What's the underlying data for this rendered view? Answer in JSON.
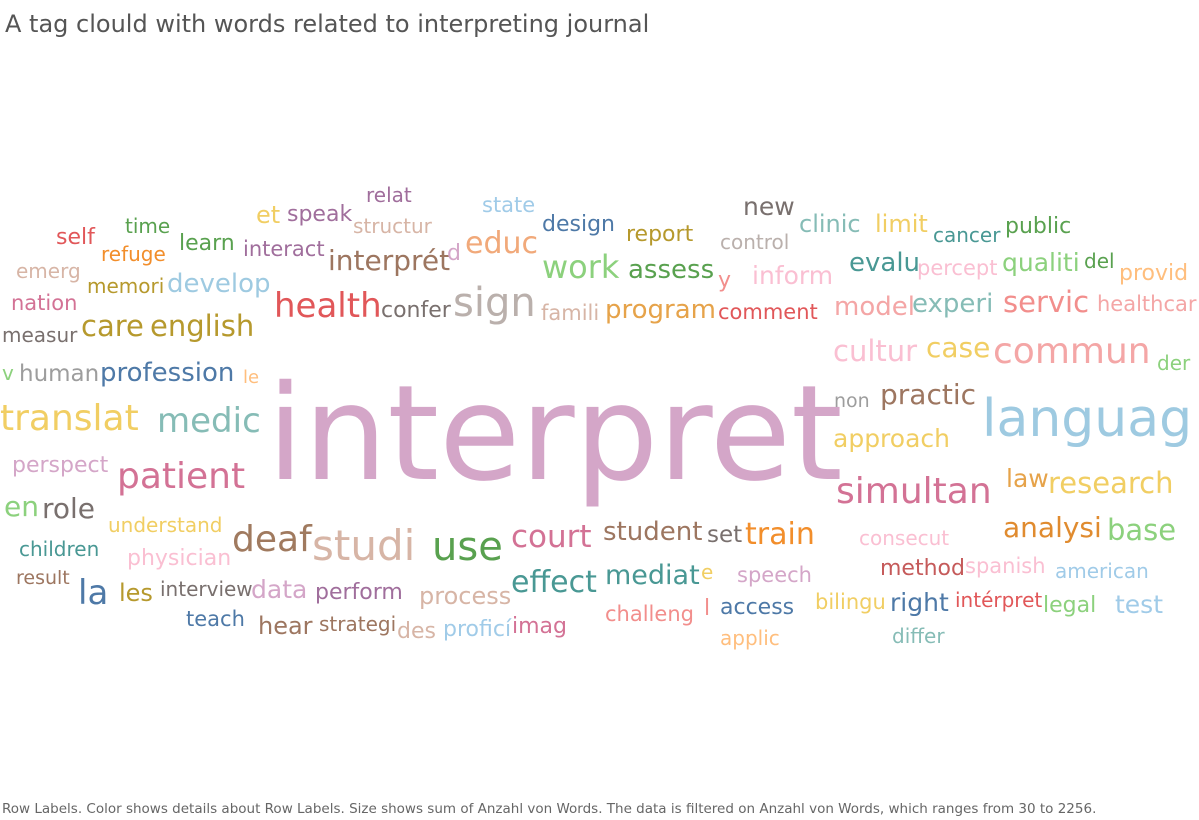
{
  "title": "A tag clould with words related to interpreting journal",
  "caption": "Row Labels.  Color shows details about Row Labels.  Size shows sum of Anzahl von Words. The data is filtered on Anzahl von Words, which ranges from 30 to 2256.",
  "chart_data": {
    "type": "word_cloud",
    "title": "A tag clould with words related to interpreting journal",
    "measure": "Anzahl von Words",
    "filter_range": [
      30,
      2256
    ],
    "words": [
      {
        "text": "interpret",
        "value": 2256,
        "color": "#d4a6c8"
      },
      {
        "text": "languag",
        "value": 620,
        "color": "#9ecae1"
      },
      {
        "text": "studi",
        "value": 330,
        "color": "#d7b5a6"
      },
      {
        "text": "patient",
        "value": 320,
        "color": "#d37295"
      },
      {
        "text": "translat",
        "value": 310,
        "color": "#f1ce63"
      },
      {
        "text": "commun",
        "value": 300,
        "color": "#f4a6a6"
      },
      {
        "text": "simultan",
        "value": 290,
        "color": "#d37295"
      },
      {
        "text": "use",
        "value": 290,
        "color": "#59a14f"
      },
      {
        "text": "sign",
        "value": 280,
        "color": "#bab0ac"
      },
      {
        "text": "medic",
        "value": 270,
        "color": "#86bcb6"
      },
      {
        "text": "health",
        "value": 260,
        "color": "#e15759"
      },
      {
        "text": "deaf",
        "value": 250,
        "color": "#a07a5f"
      },
      {
        "text": "english",
        "value": 200,
        "color": "#b6992d"
      },
      {
        "text": "work",
        "value": 200,
        "color": "#8cd17d"
      },
      {
        "text": "educ",
        "value": 190,
        "color": "#f1a97a"
      },
      {
        "text": "court",
        "value": 185,
        "color": "#d37295"
      },
      {
        "text": "effect",
        "value": 180,
        "color": "#499894"
      },
      {
        "text": "research",
        "value": 175,
        "color": "#f1ce63"
      },
      {
        "text": "train",
        "value": 175,
        "color": "#f28e2b"
      },
      {
        "text": "cultur",
        "value": 170,
        "color": "#fabfd2"
      },
      {
        "text": "care",
        "value": 170,
        "color": "#b6992d"
      },
      {
        "text": "base",
        "value": 165,
        "color": "#8cd17d"
      },
      {
        "text": "servic",
        "value": 165,
        "color": "#f28e8c"
      },
      {
        "text": "role",
        "value": 160,
        "color": "#79706e"
      },
      {
        "text": "case",
        "value": 160,
        "color": "#f1ce63"
      },
      {
        "text": "develop",
        "value": 155,
        "color": "#9ecae1"
      },
      {
        "text": "practic",
        "value": 155,
        "color": "#9d7660"
      },
      {
        "text": "mediat",
        "value": 155,
        "color": "#499894"
      },
      {
        "text": "student",
        "value": 150,
        "color": "#9d7660"
      },
      {
        "text": "analysi",
        "value": 150,
        "color": "#e08b2f"
      },
      {
        "text": "la",
        "value": 150,
        "color": "#4e79a7"
      },
      {
        "text": "program",
        "value": 145,
        "color": "#e6a34a"
      },
      {
        "text": "profession",
        "value": 145,
        "color": "#4e79a7"
      },
      {
        "text": "interprét",
        "value": 145,
        "color": "#9d7660"
      },
      {
        "text": "assess",
        "value": 140,
        "color": "#59a14f"
      },
      {
        "text": "experi",
        "value": 140,
        "color": "#86bcb6"
      },
      {
        "text": "evalu",
        "value": 140,
        "color": "#499894"
      },
      {
        "text": "approach",
        "value": 135,
        "color": "#f1ce63"
      },
      {
        "text": "qualiti",
        "value": 135,
        "color": "#8cd17d"
      },
      {
        "text": "model",
        "value": 135,
        "color": "#f4a6a6"
      },
      {
        "text": "test",
        "value": 130,
        "color": "#a0cbe8"
      },
      {
        "text": "right",
        "value": 130,
        "color": "#4e79a7"
      },
      {
        "text": "confer",
        "value": 130,
        "color": "#79706e"
      },
      {
        "text": "human",
        "value": 130,
        "color": "#9d9d9d"
      },
      {
        "text": "hear",
        "value": 130,
        "color": "#9d7660"
      },
      {
        "text": "new",
        "value": 125,
        "color": "#79706e"
      },
      {
        "text": "inform",
        "value": 125,
        "color": "#fabfd2"
      },
      {
        "text": "data",
        "value": 125,
        "color": "#d4a6c8"
      },
      {
        "text": "process",
        "value": 125,
        "color": "#d7b5a6"
      },
      {
        "text": "perspect",
        "value": 120,
        "color": "#d4a6c8"
      },
      {
        "text": "law",
        "value": 120,
        "color": "#e6a34a"
      },
      {
        "text": "comment",
        "value": 120,
        "color": "#e15759"
      },
      {
        "text": "report",
        "value": 120,
        "color": "#b6992d"
      },
      {
        "text": "learn",
        "value": 120,
        "color": "#59a14f"
      },
      {
        "text": "design",
        "value": 120,
        "color": "#4e79a7"
      },
      {
        "text": "perform",
        "value": 120,
        "color": "#a06e9c"
      },
      {
        "text": "method",
        "value": 120,
        "color": "#c55a5a"
      },
      {
        "text": "les",
        "value": 120,
        "color": "#b6992d"
      },
      {
        "text": "imag",
        "value": 115,
        "color": "#d37295"
      },
      {
        "text": "clinic",
        "value": 115,
        "color": "#86bcb6"
      },
      {
        "text": "limit",
        "value": 115,
        "color": "#f1ce63"
      },
      {
        "text": "access",
        "value": 115,
        "color": "#4e79a7"
      },
      {
        "text": "set",
        "value": 115,
        "color": "#79706e"
      },
      {
        "text": "speak",
        "value": 110,
        "color": "#a06e9c"
      },
      {
        "text": "speech",
        "value": 110,
        "color": "#d4a6c8"
      },
      {
        "text": "memori",
        "value": 110,
        "color": "#b6992d"
      },
      {
        "text": "interact",
        "value": 110,
        "color": "#a06e9c"
      },
      {
        "text": "intérpret",
        "value": 110,
        "color": "#e15759"
      },
      {
        "text": "percept",
        "value": 110,
        "color": "#fabfd2"
      },
      {
        "text": "spanish",
        "value": 110,
        "color": "#fabfd2"
      },
      {
        "text": "understand",
        "value": 110,
        "color": "#f1ce63"
      },
      {
        "text": "physician",
        "value": 110,
        "color": "#fabfd2"
      },
      {
        "text": "challeng",
        "value": 110,
        "color": "#f28e8c"
      },
      {
        "text": "proficí",
        "value": 110,
        "color": "#a0cbe8"
      },
      {
        "text": "provid",
        "value": 110,
        "color": "#ffbe7d"
      },
      {
        "text": "public",
        "value": 110,
        "color": "#59a14f"
      },
      {
        "text": "healthcar",
        "value": 105,
        "color": "#f4a6a6"
      },
      {
        "text": "et",
        "value": 105,
        "color": "#f1ce63"
      },
      {
        "text": "control",
        "value": 105,
        "color": "#bab0ac"
      },
      {
        "text": "cancer",
        "value": 105,
        "color": "#499894"
      },
      {
        "text": "consecut",
        "value": 105,
        "color": "#fabfd2"
      },
      {
        "text": "american",
        "value": 105,
        "color": "#a0cbe8"
      },
      {
        "text": "legal",
        "value": 105,
        "color": "#8cd17d"
      },
      {
        "text": "bilingu",
        "value": 105,
        "color": "#f1ce63"
      },
      {
        "text": "strategi",
        "value": 105,
        "color": "#9d7660"
      },
      {
        "text": "des",
        "value": 105,
        "color": "#d7b5a6"
      },
      {
        "text": "interview",
        "value": 105,
        "color": "#79706e"
      },
      {
        "text": "self",
        "value": 105,
        "color": "#e15759"
      },
      {
        "text": "children",
        "value": 100,
        "color": "#499894"
      },
      {
        "text": "teach",
        "value": 100,
        "color": "#4e79a7"
      },
      {
        "text": "famili",
        "value": 100,
        "color": "#d7b5a6"
      },
      {
        "text": "relat",
        "value": 100,
        "color": "#a06e9c"
      },
      {
        "text": "state",
        "value": 100,
        "color": "#a0cbe8"
      },
      {
        "text": "structur",
        "value": 100,
        "color": "#d7b5a6"
      },
      {
        "text": "measur",
        "value": 100,
        "color": "#79706e"
      },
      {
        "text": "nation",
        "value": 100,
        "color": "#d37295"
      },
      {
        "text": "emerg",
        "value": 100,
        "color": "#d7b5a6"
      },
      {
        "text": "time",
        "value": 100,
        "color": "#59a14f"
      },
      {
        "text": "refuge",
        "value": 100,
        "color": "#f28e2b"
      },
      {
        "text": "differ",
        "value": 100,
        "color": "#86bcb6"
      },
      {
        "text": "applic",
        "value": 100,
        "color": "#ffbe7d"
      },
      {
        "text": "non",
        "value": 100,
        "color": "#9d9d9d"
      },
      {
        "text": "der",
        "value": 100,
        "color": "#8cd17d"
      },
      {
        "text": "del",
        "value": 100,
        "color": "#59a14f"
      },
      {
        "text": "result",
        "value": 95,
        "color": "#9d7660"
      },
      {
        "text": "en",
        "value": 95,
        "color": "#8cd17d"
      },
      {
        "text": "d",
        "value": 95,
        "color": "#d4a6c8"
      },
      {
        "text": "y",
        "value": 95,
        "color": "#f28e8c"
      },
      {
        "text": "e",
        "value": 90,
        "color": "#f1ce63"
      },
      {
        "text": "le",
        "value": 90,
        "color": "#ffbe7d"
      },
      {
        "text": "v",
        "value": 90,
        "color": "#8cd17d"
      },
      {
        "text": "l",
        "value": 90,
        "color": "#f28e8c"
      }
    ]
  }
}
